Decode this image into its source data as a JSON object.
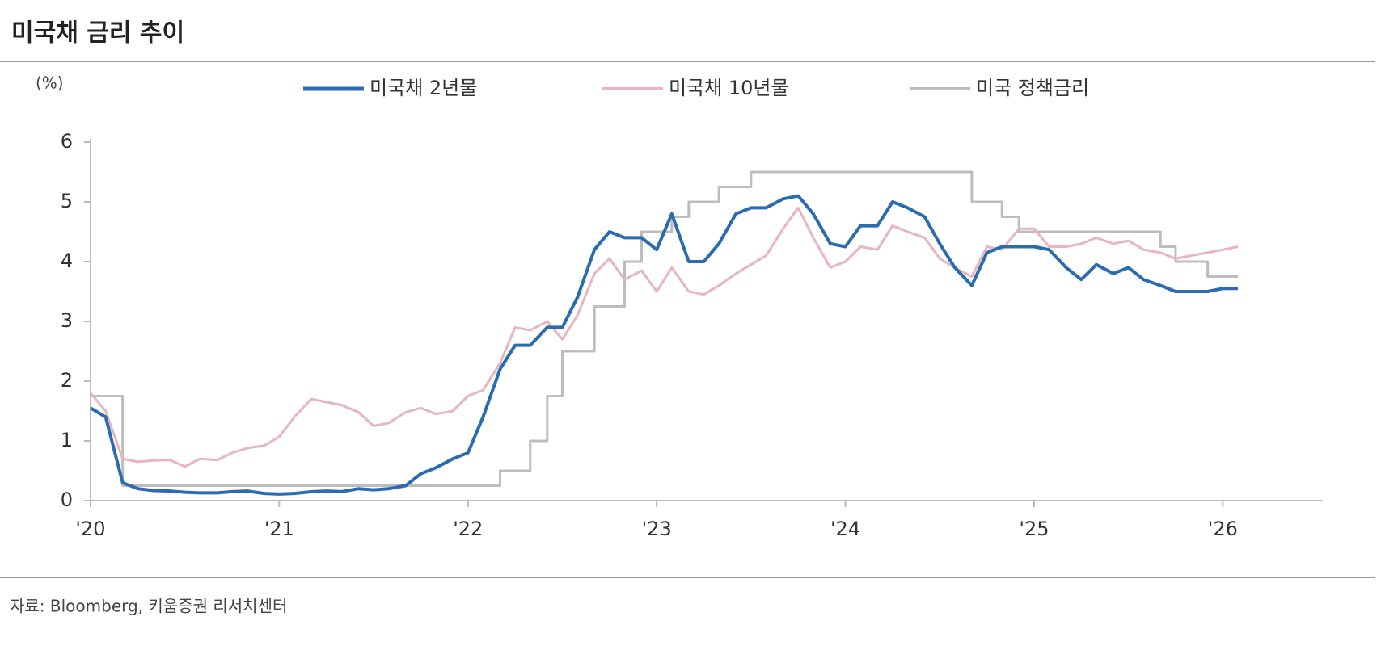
{
  "chart_data": {
    "type": "line",
    "title": "미국채 금리 추이",
    "y_label": "(%)",
    "source": "자료: Bloomberg, 키움증권 리서치센터",
    "x": [
      2020.0,
      2020.08,
      2020.17,
      2020.25,
      2020.33,
      2020.42,
      2020.5,
      2020.58,
      2020.67,
      2020.75,
      2020.83,
      2020.92,
      2021.0,
      2021.08,
      2021.17,
      2021.25,
      2021.33,
      2021.42,
      2021.5,
      2021.58,
      2021.67,
      2021.75,
      2021.83,
      2021.92,
      2022.0,
      2022.08,
      2022.17,
      2022.25,
      2022.33,
      2022.42,
      2022.5,
      2022.58,
      2022.67,
      2022.75,
      2022.83,
      2022.92,
      2023.0,
      2023.08,
      2023.17,
      2023.25,
      2023.33,
      2023.42,
      2023.5,
      2023.58,
      2023.67,
      2023.75,
      2023.83,
      2023.92,
      2024.0,
      2024.08,
      2024.17,
      2024.25,
      2024.33,
      2024.42,
      2024.5,
      2024.58,
      2024.67,
      2024.75,
      2024.83,
      2024.92,
      2025.0,
      2025.08,
      2025.17,
      2025.25,
      2025.33,
      2025.42,
      2025.5,
      2025.58,
      2025.67,
      2025.75,
      2025.83,
      2025.92,
      2026.0,
      2026.08
    ],
    "series": [
      {
        "name": "미국채 2년물",
        "color": "#2b6cb0",
        "width": 4,
        "values": [
          1.55,
          1.4,
          0.3,
          0.2,
          0.17,
          0.16,
          0.14,
          0.13,
          0.13,
          0.15,
          0.16,
          0.12,
          0.11,
          0.12,
          0.15,
          0.16,
          0.15,
          0.2,
          0.18,
          0.2,
          0.25,
          0.45,
          0.55,
          0.7,
          0.8,
          1.4,
          2.2,
          2.6,
          2.6,
          2.9,
          2.9,
          3.4,
          4.2,
          4.5,
          4.4,
          4.4,
          4.2,
          4.8,
          4.0,
          4.0,
          4.3,
          4.8,
          4.9,
          4.9,
          5.05,
          5.1,
          4.8,
          4.3,
          4.25,
          4.6,
          4.6,
          5.0,
          4.9,
          4.75,
          4.3,
          3.9,
          3.6,
          4.15,
          4.25,
          4.25,
          4.25,
          4.2,
          3.9,
          3.7,
          3.95,
          3.8,
          3.9,
          3.7,
          3.6,
          3.5,
          3.5,
          3.5,
          3.55,
          3.55
        ]
      },
      {
        "name": "미국채 10년물",
        "color": "#e8b4c4",
        "width": 3,
        "values": [
          1.8,
          1.5,
          0.7,
          0.65,
          0.67,
          0.68,
          0.57,
          0.7,
          0.68,
          0.8,
          0.88,
          0.92,
          1.07,
          1.4,
          1.7,
          1.65,
          1.6,
          1.48,
          1.25,
          1.3,
          1.48,
          1.55,
          1.45,
          1.5,
          1.75,
          1.85,
          2.3,
          2.9,
          2.85,
          3.0,
          2.7,
          3.1,
          3.8,
          4.05,
          3.7,
          3.85,
          3.5,
          3.9,
          3.5,
          3.45,
          3.6,
          3.8,
          3.95,
          4.1,
          4.55,
          4.9,
          4.4,
          3.9,
          4.0,
          4.25,
          4.2,
          4.6,
          4.5,
          4.4,
          4.05,
          3.9,
          3.75,
          4.25,
          4.2,
          4.55,
          4.55,
          4.25,
          4.25,
          4.3,
          4.4,
          4.3,
          4.35,
          4.2,
          4.15,
          4.05,
          4.1,
          4.15,
          4.2,
          4.25
        ]
      },
      {
        "name": "미국 정책금리",
        "color": "#bdbdbd",
        "width": 3,
        "step": true,
        "values": [
          1.75,
          1.75,
          0.25,
          0.25,
          0.25,
          0.25,
          0.25,
          0.25,
          0.25,
          0.25,
          0.25,
          0.25,
          0.25,
          0.25,
          0.25,
          0.25,
          0.25,
          0.25,
          0.25,
          0.25,
          0.25,
          0.25,
          0.25,
          0.25,
          0.25,
          0.25,
          0.5,
          0.5,
          1.0,
          1.75,
          2.5,
          2.5,
          3.25,
          3.25,
          4.0,
          4.5,
          4.5,
          4.75,
          5.0,
          5.0,
          5.25,
          5.25,
          5.5,
          5.5,
          5.5,
          5.5,
          5.5,
          5.5,
          5.5,
          5.5,
          5.5,
          5.5,
          5.5,
          5.5,
          5.5,
          5.5,
          5.0,
          5.0,
          4.75,
          4.5,
          4.5,
          4.5,
          4.5,
          4.5,
          4.5,
          4.5,
          4.5,
          4.5,
          4.25,
          4.0,
          4.0,
          3.75,
          3.75,
          3.75
        ]
      }
    ],
    "xlim": [
      2020,
      2026.5
    ],
    "xticks": [
      {
        "value": 2020,
        "label": "'20"
      },
      {
        "value": 2021,
        "label": "'21"
      },
      {
        "value": 2022,
        "label": "'22"
      },
      {
        "value": 2023,
        "label": "'23"
      },
      {
        "value": 2024,
        "label": "'24"
      },
      {
        "value": 2025,
        "label": "'25"
      },
      {
        "value": 2026,
        "label": "'26"
      }
    ],
    "ylim": [
      0,
      6
    ],
    "yticks": [
      0,
      1,
      2,
      3,
      4,
      5,
      6
    ],
    "grid": false
  }
}
